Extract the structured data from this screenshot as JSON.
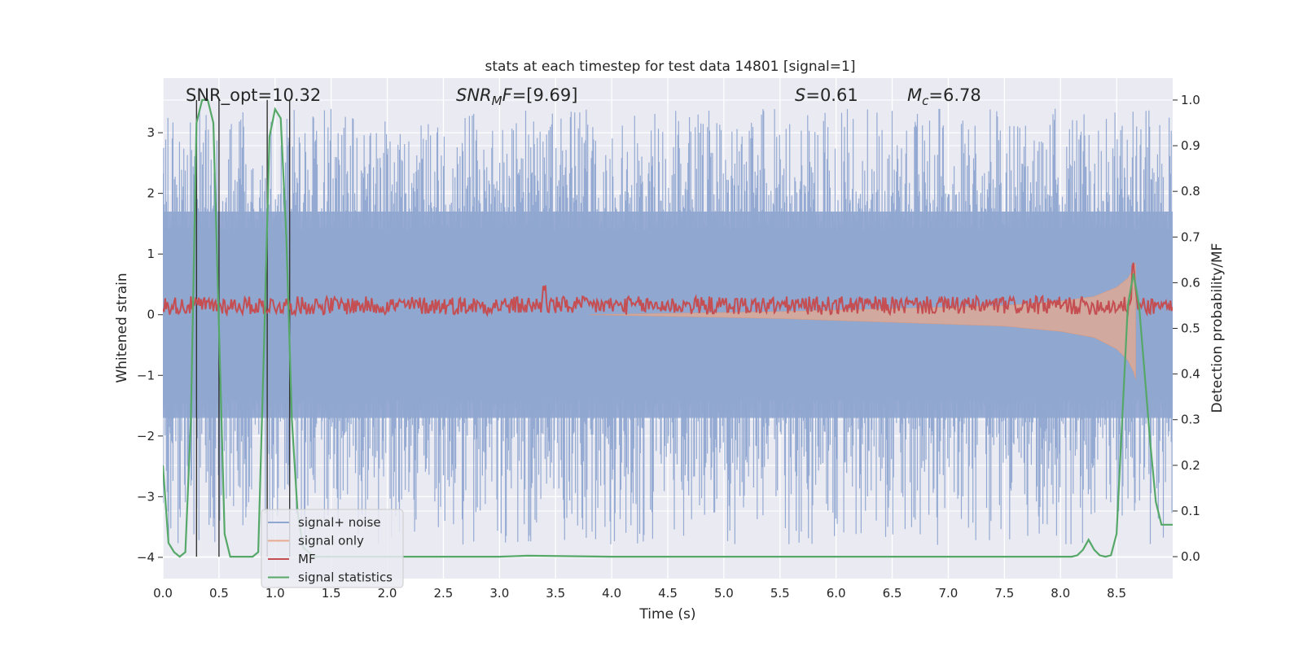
{
  "chart_data": {
    "type": "line",
    "title": "stats at each timestep for test data 14801 [signal=1]",
    "xlabel": "Time (s)",
    "ylabel": "Whitened strain",
    "y2label": "Detection probability/MF",
    "xlim": [
      0.0,
      9.0
    ],
    "ylim": [
      -4.35,
      3.9
    ],
    "y2lim": [
      -0.048,
      1.048
    ],
    "x_ticks": [
      "0.0",
      "0.5",
      "1.0",
      "1.5",
      "2.0",
      "2.5",
      "3.0",
      "3.5",
      "4.0",
      "4.5",
      "5.0",
      "5.5",
      "6.0",
      "6.5",
      "7.0",
      "7.5",
      "8.0",
      "8.5"
    ],
    "y_ticks": [
      "−4",
      "−3",
      "−2",
      "−1",
      "0",
      "1",
      "2",
      "3"
    ],
    "y2_ticks": [
      "0.0",
      "0.1",
      "0.2",
      "0.3",
      "0.4",
      "0.5",
      "0.6",
      "0.7",
      "0.8",
      "0.9",
      "1.0"
    ],
    "grid": true,
    "legend_position": "lower-left",
    "annotations": {
      "snr_opt": "SNR_opt=10.32",
      "snr_mf": "SNR_MF=[9.69]",
      "s_value": "S=0.61",
      "mc_value": "M_c=6.78"
    },
    "detection_markers_x": [
      0.3,
      0.5,
      0.93,
      1.13
    ],
    "series": [
      {
        "name": "signal+ noise",
        "color": "#8fa6d0",
        "axis": "left",
        "description": "whitened strain noise, spans roughly -3.8 to 3.4 across full range",
        "band_core": [
          -1.7,
          1.7
        ],
        "spike_extent": [
          -3.8,
          3.4
        ]
      },
      {
        "name": "signal only",
        "color": "#e8a98d",
        "axis": "left",
        "envelope": {
          "x": [
            4.5,
            5.5,
            6.5,
            7.5,
            8.0,
            8.3,
            8.5,
            8.6,
            8.65,
            8.67
          ],
          "amplitude": [
            0.02,
            0.05,
            0.1,
            0.15,
            0.22,
            0.3,
            0.45,
            0.6,
            0.75,
            0.85
          ]
        }
      },
      {
        "name": "MF",
        "color": "#c44e52",
        "axis": "right",
        "baseline": 0.55,
        "jitter": 0.02,
        "peaks": [
          {
            "x": 3.4,
            "y": 0.6
          },
          {
            "x": 8.65,
            "y": 0.66
          }
        ]
      },
      {
        "name": "signal statistics",
        "color": "#55a868",
        "axis": "right",
        "x": [
          0.0,
          0.05,
          0.1,
          0.15,
          0.2,
          0.25,
          0.3,
          0.35,
          0.4,
          0.45,
          0.5,
          0.55,
          0.6,
          0.65,
          0.7,
          0.75,
          0.8,
          0.85,
          0.9,
          0.95,
          1.0,
          1.05,
          1.1,
          1.15,
          1.2,
          1.25,
          1.3,
          1.35,
          1.4,
          2.0,
          3.0,
          3.25,
          4.0,
          5.0,
          6.0,
          7.0,
          8.0,
          8.1,
          8.15,
          8.2,
          8.25,
          8.3,
          8.35,
          8.4,
          8.45,
          8.5,
          8.55,
          8.6,
          8.65,
          8.7,
          8.75,
          8.8,
          8.85,
          8.9,
          8.95,
          9.0
        ],
        "y": [
          0.2,
          0.03,
          0.01,
          0.0,
          0.01,
          0.3,
          0.95,
          1.0,
          1.0,
          0.95,
          0.5,
          0.05,
          0.0,
          0.0,
          0.0,
          0.0,
          0.0,
          0.01,
          0.45,
          0.92,
          0.98,
          0.96,
          0.7,
          0.3,
          0.1,
          0.02,
          0.01,
          0.0,
          0.0,
          0.0,
          0.0,
          0.002,
          0.0,
          0.0,
          0.0,
          0.0,
          0.0,
          0.0,
          0.003,
          0.015,
          0.037,
          0.015,
          0.003,
          0.0,
          0.003,
          0.05,
          0.3,
          0.55,
          0.62,
          0.55,
          0.4,
          0.25,
          0.12,
          0.07,
          0.07,
          0.07
        ]
      }
    ]
  }
}
